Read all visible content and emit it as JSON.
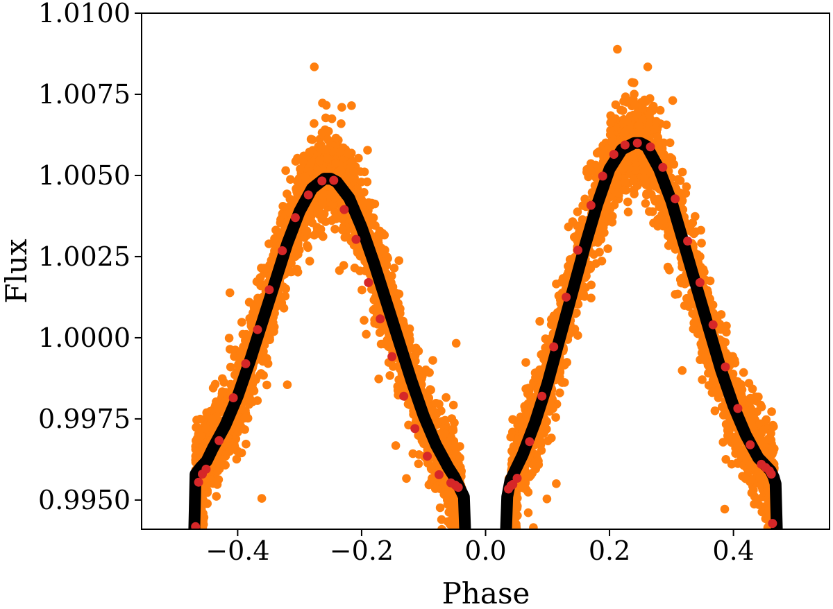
{
  "chart_data": {
    "type": "scatter",
    "title": "",
    "xlabel": "Phase",
    "ylabel": "Flux",
    "xlim": [
      -0.555,
      0.555
    ],
    "ylim": [
      0.9941,
      1.01
    ],
    "x_ticks": [
      -0.4,
      -0.2,
      0.0,
      0.2,
      0.4
    ],
    "x_tick_labels": [
      "−0.4",
      "−0.2",
      "0.0",
      "0.2",
      "0.4"
    ],
    "y_ticks": [
      0.995,
      0.9975,
      1.0,
      1.0025,
      1.005,
      1.0075,
      1.01
    ],
    "y_tick_labels": [
      "0.9950",
      "0.9975",
      "1.0000",
      "1.0025",
      "1.0050",
      "1.0075",
      "1.0100"
    ],
    "grid": false,
    "legend": "none",
    "colors": {
      "observations": "#ff7f0e",
      "model": "#000000",
      "binned": "#d62728"
    },
    "series": [
      {
        "kind": "scatter",
        "note": "dense cloud of observed points following the model curve with scatter of about ±0.001",
        "x": [
          -0.46,
          -0.45,
          -0.44,
          -0.42,
          -0.4,
          -0.38,
          -0.36,
          -0.34,
          -0.32,
          -0.3,
          -0.28,
          -0.26,
          -0.25,
          -0.24,
          -0.22,
          -0.2,
          -0.18,
          -0.16,
          -0.14,
          -0.12,
          -0.1,
          -0.08,
          -0.06,
          -0.05,
          -0.04,
          0.04,
          0.05,
          0.06,
          0.08,
          0.1,
          0.12,
          0.14,
          0.16,
          0.18,
          0.2,
          0.22,
          0.24,
          0.25,
          0.26,
          0.28,
          0.3,
          0.32,
          0.34,
          0.36,
          0.38,
          0.4,
          0.42,
          0.44,
          0.45,
          0.46
        ],
        "y": [
          0.9959,
          0.9962,
          0.9966,
          0.9973,
          0.9982,
          0.9993,
          1.0005,
          1.0017,
          1.0029,
          1.0039,
          1.0046,
          1.0049,
          1.0049,
          1.0048,
          1.0043,
          1.0034,
          1.0023,
          1.0011,
          0.9999,
          0.9987,
          0.9976,
          0.9967,
          0.996,
          0.9957,
          0.9954,
          0.9956,
          0.996,
          0.9964,
          0.9974,
          0.9986,
          1.0,
          1.0014,
          1.0028,
          1.0041,
          1.0052,
          1.0058,
          1.006,
          1.006,
          1.0059,
          1.0052,
          1.0042,
          1.0029,
          1.0016,
          1.0003,
          0.999,
          0.9979,
          0.997,
          0.9963,
          0.9961,
          0.9959
        ]
      },
      {
        "kind": "line",
        "note": "model light curve (thick black line) for eclipse-free phases",
        "segments": [
          {
            "x": [
              -0.47,
              -0.468,
              -0.46,
              -0.45,
              -0.44,
              -0.42,
              -0.4,
              -0.38,
              -0.36,
              -0.34,
              -0.32,
              -0.3,
              -0.28,
              -0.26,
              -0.25,
              -0.24,
              -0.22,
              -0.2,
              -0.18,
              -0.16,
              -0.14,
              -0.12,
              -0.1,
              -0.08,
              -0.06,
              -0.05,
              -0.04,
              -0.035,
              -0.033
            ],
            "y": [
              0.9941,
              0.9958,
              0.996,
              0.9962,
              0.9966,
              0.9973,
              0.9982,
              0.9993,
              1.0005,
              1.0017,
              1.0029,
              1.0039,
              1.0046,
              1.0049,
              1.0049,
              1.0048,
              1.0043,
              1.0034,
              1.0023,
              1.0011,
              0.9999,
              0.9987,
              0.9976,
              0.9967,
              0.996,
              0.9957,
              0.9953,
              0.9951,
              0.9941
            ]
          },
          {
            "x": [
              0.033,
              0.035,
              0.04,
              0.05,
              0.06,
              0.08,
              0.1,
              0.12,
              0.14,
              0.16,
              0.18,
              0.2,
              0.22,
              0.24,
              0.25,
              0.26,
              0.28,
              0.3,
              0.32,
              0.34,
              0.36,
              0.38,
              0.4,
              0.42,
              0.44,
              0.45,
              0.46,
              0.465,
              0.468,
              0.47
            ],
            "y": [
              0.9941,
              0.9951,
              0.9956,
              0.996,
              0.9964,
              0.9974,
              0.9986,
              1.0,
              1.0014,
              1.0028,
              1.0041,
              1.0052,
              1.0058,
              1.006,
              1.006,
              1.0059,
              1.0052,
              1.0042,
              1.0029,
              1.0016,
              1.0003,
              0.999,
              0.9979,
              0.997,
              0.9963,
              0.9961,
              0.9959,
              0.9957,
              0.9955,
              0.9941
            ]
          }
        ]
      },
      {
        "kind": "scatter",
        "note": "binned data points (red dots) lying on the model curve",
        "x": [
          -0.468,
          -0.463,
          -0.457,
          -0.451,
          -0.43,
          -0.407,
          -0.387,
          -0.368,
          -0.349,
          -0.328,
          -0.307,
          -0.286,
          -0.264,
          -0.245,
          -0.228,
          -0.209,
          -0.189,
          -0.17,
          -0.151,
          -0.132,
          -0.114,
          -0.094,
          -0.075,
          -0.056,
          -0.049,
          -0.046,
          -0.044,
          0.037,
          0.041,
          0.044,
          0.051,
          0.071,
          0.091,
          0.11,
          0.13,
          0.149,
          0.17,
          0.189,
          0.207,
          0.225,
          0.245,
          0.266,
          0.286,
          0.306,
          0.326,
          0.346,
          0.367,
          0.387,
          0.407,
          0.427,
          0.445,
          0.452,
          0.458,
          0.461,
          0.463
        ],
        "y": [
          0.99418,
          0.99555,
          0.9958,
          0.99595,
          0.99683,
          0.99815,
          0.9992,
          1.00025,
          1.00148,
          1.00268,
          1.0037,
          1.0044,
          1.00483,
          1.00485,
          1.00395,
          1.00303,
          1.0017,
          1.00058,
          0.99942,
          0.9982,
          0.9972,
          0.99635,
          0.99578,
          0.99553,
          0.99546,
          0.99541,
          0.99539,
          0.99534,
          0.99544,
          0.99548,
          0.99567,
          0.9968,
          0.9982,
          0.99972,
          1.00125,
          1.0027,
          1.00408,
          1.00498,
          1.00565,
          1.00594,
          1.006,
          1.00588,
          1.00525,
          1.00428,
          1.00298,
          1.0017,
          1.0004,
          0.9991,
          0.99782,
          0.9967,
          0.9961,
          0.996,
          0.9959,
          0.9958,
          0.99428
        ]
      }
    ]
  }
}
